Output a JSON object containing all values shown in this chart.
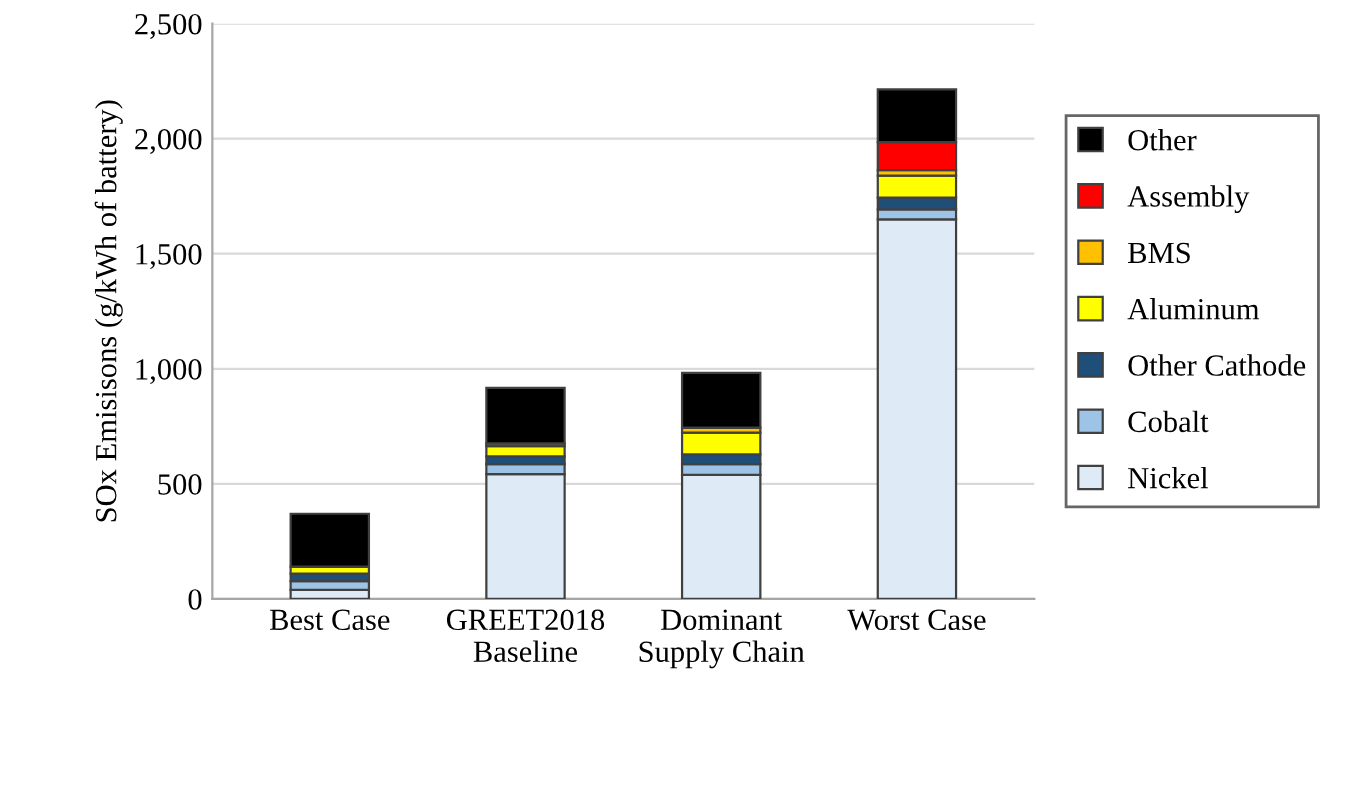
{
  "chart_data": {
    "type": "bar",
    "stacked": true,
    "ylabel": "SOx Emisisons (g/kWh of battery)",
    "categories": [
      "Best Case",
      "GREET2018\nBaseline",
      "Dominant\nSupply Chain",
      "Worst Case"
    ],
    "series": [
      {
        "name": "Nickel",
        "color": "#deebf7",
        "values": [
          39,
          542,
          539,
          1649
        ]
      },
      {
        "name": "Cobalt",
        "color": "#9dc3e6",
        "values": [
          38,
          44,
          47,
          44
        ]
      },
      {
        "name": "Other Cathode",
        "color": "#1f4e79",
        "values": [
          33,
          33,
          42,
          51
        ]
      },
      {
        "name": "Aluminum",
        "color": "#ffff00",
        "values": [
          30,
          45,
          95,
          95
        ]
      },
      {
        "name": "BMS",
        "color": "#ffc000",
        "values": [
          null,
          12,
          21,
          24
        ]
      },
      {
        "name": "Assembly",
        "color": "#ff0000",
        "values": [
          0,
          null,
          null,
          122
        ]
      },
      {
        "name": "Other",
        "color": "#000000",
        "values": [
          230,
          241,
          238,
          229
        ]
      }
    ],
    "ylim": [
      0,
      2500
    ],
    "yticks": [
      {
        "value": 0,
        "label": "0"
      },
      {
        "value": 500,
        "label": "500"
      },
      {
        "value": 1000,
        "label": "1,000"
      },
      {
        "value": 1500,
        "label": "1,500"
      },
      {
        "value": 2000,
        "label": "2,000"
      },
      {
        "value": 2500,
        "label": "2,500"
      }
    ],
    "grid": "y",
    "legend": "right"
  }
}
